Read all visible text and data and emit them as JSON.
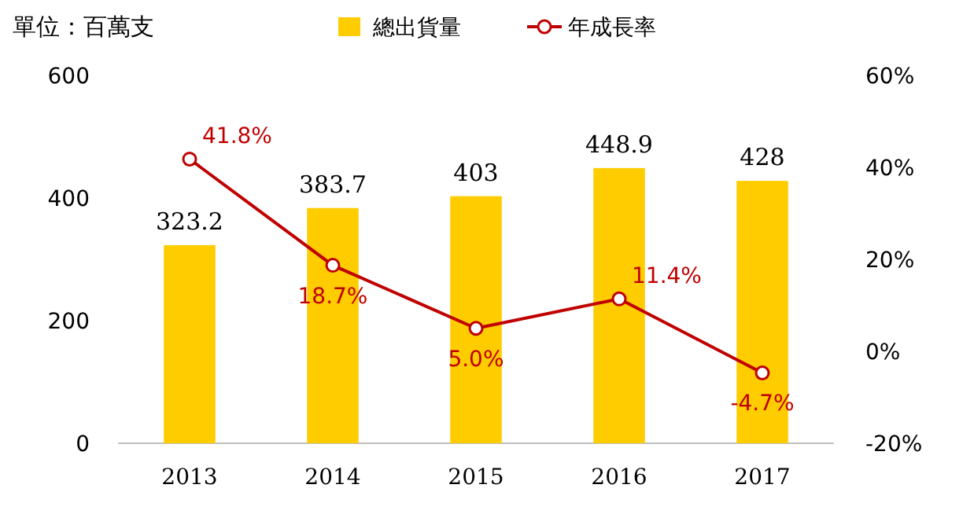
{
  "chart_data": {
    "type": "bar",
    "categories": [
      "2013",
      "2014",
      "2015",
      "2016",
      "2017"
    ],
    "series": [
      {
        "name": "總出貨量",
        "color": "#ffcc00",
        "values": [
          323.2,
          383.7,
          403,
          448.9,
          428
        ]
      },
      {
        "name": "年成長率",
        "type": "line",
        "axis": "y2",
        "color": "#c00000",
        "marker": "circle",
        "values": [
          41.8,
          18.7,
          5.0,
          11.4,
          -4.7
        ],
        "value_labels": [
          "41.8%",
          "18.7%",
          "5.0%",
          "11.4%",
          "-4.7%"
        ]
      }
    ],
    "ylim": [
      0,
      600
    ],
    "yticks": [
      0,
      200,
      400,
      600
    ],
    "y2lim": [
      -20,
      60
    ],
    "y2ticks": [
      {
        "value": -20,
        "label": "-20%"
      },
      {
        "value": 0,
        "label": "0%"
      },
      {
        "value": 20,
        "label": "20%"
      },
      {
        "value": 40,
        "label": "40%"
      },
      {
        "value": 60,
        "label": "60%"
      }
    ],
    "data_labels": true,
    "legend": "top",
    "grid": false,
    "annotations": [
      "單位：百萬支"
    ]
  }
}
